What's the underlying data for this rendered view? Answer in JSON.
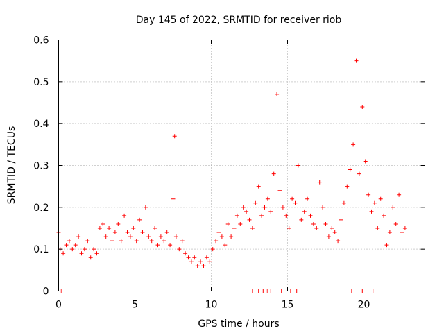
{
  "chart_data": {
    "type": "scatter",
    "title": "Day 145 of 2022, SRMTID for receiver riob",
    "xlabel": "GPS time / hours",
    "ylabel": "SRMTID / TECUs",
    "xlim": [
      0,
      24
    ],
    "ylim": [
      0,
      0.6
    ],
    "xticks": [
      0,
      5,
      10,
      15,
      20
    ],
    "yticks": [
      0,
      0.1,
      0.2,
      0.3,
      0.4,
      0.5,
      0.6
    ],
    "xtick_labels": [
      "0",
      "5",
      "10",
      "15",
      "20"
    ],
    "ytick_labels": [
      "0",
      "0.1",
      "0.2",
      "0.3",
      "0.4",
      "0.5",
      "0.6"
    ],
    "grid": true,
    "marker": "+",
    "color": "#ff0000",
    "series": [
      {
        "name": "SRMTID",
        "x": [
          0.0,
          0.1,
          0.3,
          0.5,
          0.7,
          0.9,
          1.1,
          1.3,
          1.5,
          1.7,
          1.9,
          2.1,
          2.3,
          2.5,
          2.7,
          2.9,
          3.1,
          3.3,
          3.5,
          3.7,
          3.9,
          4.1,
          4.3,
          4.5,
          4.7,
          4.9,
          5.1,
          5.3,
          5.5,
          5.7,
          5.9,
          6.1,
          6.3,
          6.5,
          6.7,
          6.9,
          7.1,
          7.3,
          7.5,
          7.6,
          7.7,
          7.9,
          8.1,
          8.3,
          8.5,
          8.7,
          8.9,
          9.1,
          9.3,
          9.5,
          9.7,
          9.9,
          10.1,
          10.3,
          10.5,
          10.7,
          10.9,
          11.1,
          11.3,
          11.5,
          11.7,
          11.9,
          12.1,
          12.3,
          12.5,
          12.7,
          12.9,
          13.1,
          13.3,
          13.5,
          13.7,
          13.9,
          14.1,
          14.3,
          14.5,
          14.7,
          14.9,
          15.1,
          15.3,
          15.5,
          15.7,
          15.9,
          16.1,
          16.3,
          16.5,
          16.7,
          16.9,
          17.1,
          17.3,
          17.5,
          17.7,
          17.9,
          18.1,
          18.3,
          18.5,
          18.7,
          18.9,
          19.1,
          19.3,
          19.5,
          19.7,
          19.9,
          20.1,
          20.3,
          20.5,
          20.7,
          20.9,
          21.1,
          21.3,
          21.5,
          21.7,
          21.9,
          22.1,
          22.3,
          22.5,
          22.7
        ],
        "y": [
          0.14,
          0.1,
          0.09,
          0.11,
          0.12,
          0.1,
          0.11,
          0.13,
          0.09,
          0.1,
          0.12,
          0.08,
          0.1,
          0.09,
          0.15,
          0.16,
          0.13,
          0.15,
          0.12,
          0.14,
          0.16,
          0.12,
          0.18,
          0.14,
          0.13,
          0.15,
          0.12,
          0.17,
          0.14,
          0.2,
          0.13,
          0.12,
          0.15,
          0.11,
          0.13,
          0.12,
          0.14,
          0.11,
          0.22,
          0.37,
          0.13,
          0.1,
          0.12,
          0.09,
          0.08,
          0.07,
          0.08,
          0.06,
          0.07,
          0.06,
          0.08,
          0.07,
          0.1,
          0.12,
          0.14,
          0.13,
          0.11,
          0.16,
          0.13,
          0.15,
          0.18,
          0.16,
          0.2,
          0.19,
          0.17,
          0.15,
          0.21,
          0.25,
          0.18,
          0.2,
          0.22,
          0.19,
          0.28,
          0.47,
          0.24,
          0.2,
          0.18,
          0.15,
          0.22,
          0.21,
          0.3,
          0.17,
          0.19,
          0.22,
          0.18,
          0.16,
          0.15,
          0.26,
          0.2,
          0.16,
          0.13,
          0.15,
          0.14,
          0.12,
          0.17,
          0.21,
          0.25,
          0.29,
          0.35,
          0.55,
          0.28,
          0.44,
          0.31,
          0.23,
          0.19,
          0.21,
          0.15,
          0.22,
          0.18,
          0.11,
          0.14,
          0.2,
          0.16,
          0.23,
          0.14,
          0.15
        ],
        "zero_points_x": [
          0.1,
          0.2,
          12.7,
          13.1,
          13.4,
          13.6,
          13.7,
          13.9,
          14.6,
          15.2,
          15.6,
          19.2,
          19.9,
          20.6,
          21.0
        ]
      }
    ]
  }
}
